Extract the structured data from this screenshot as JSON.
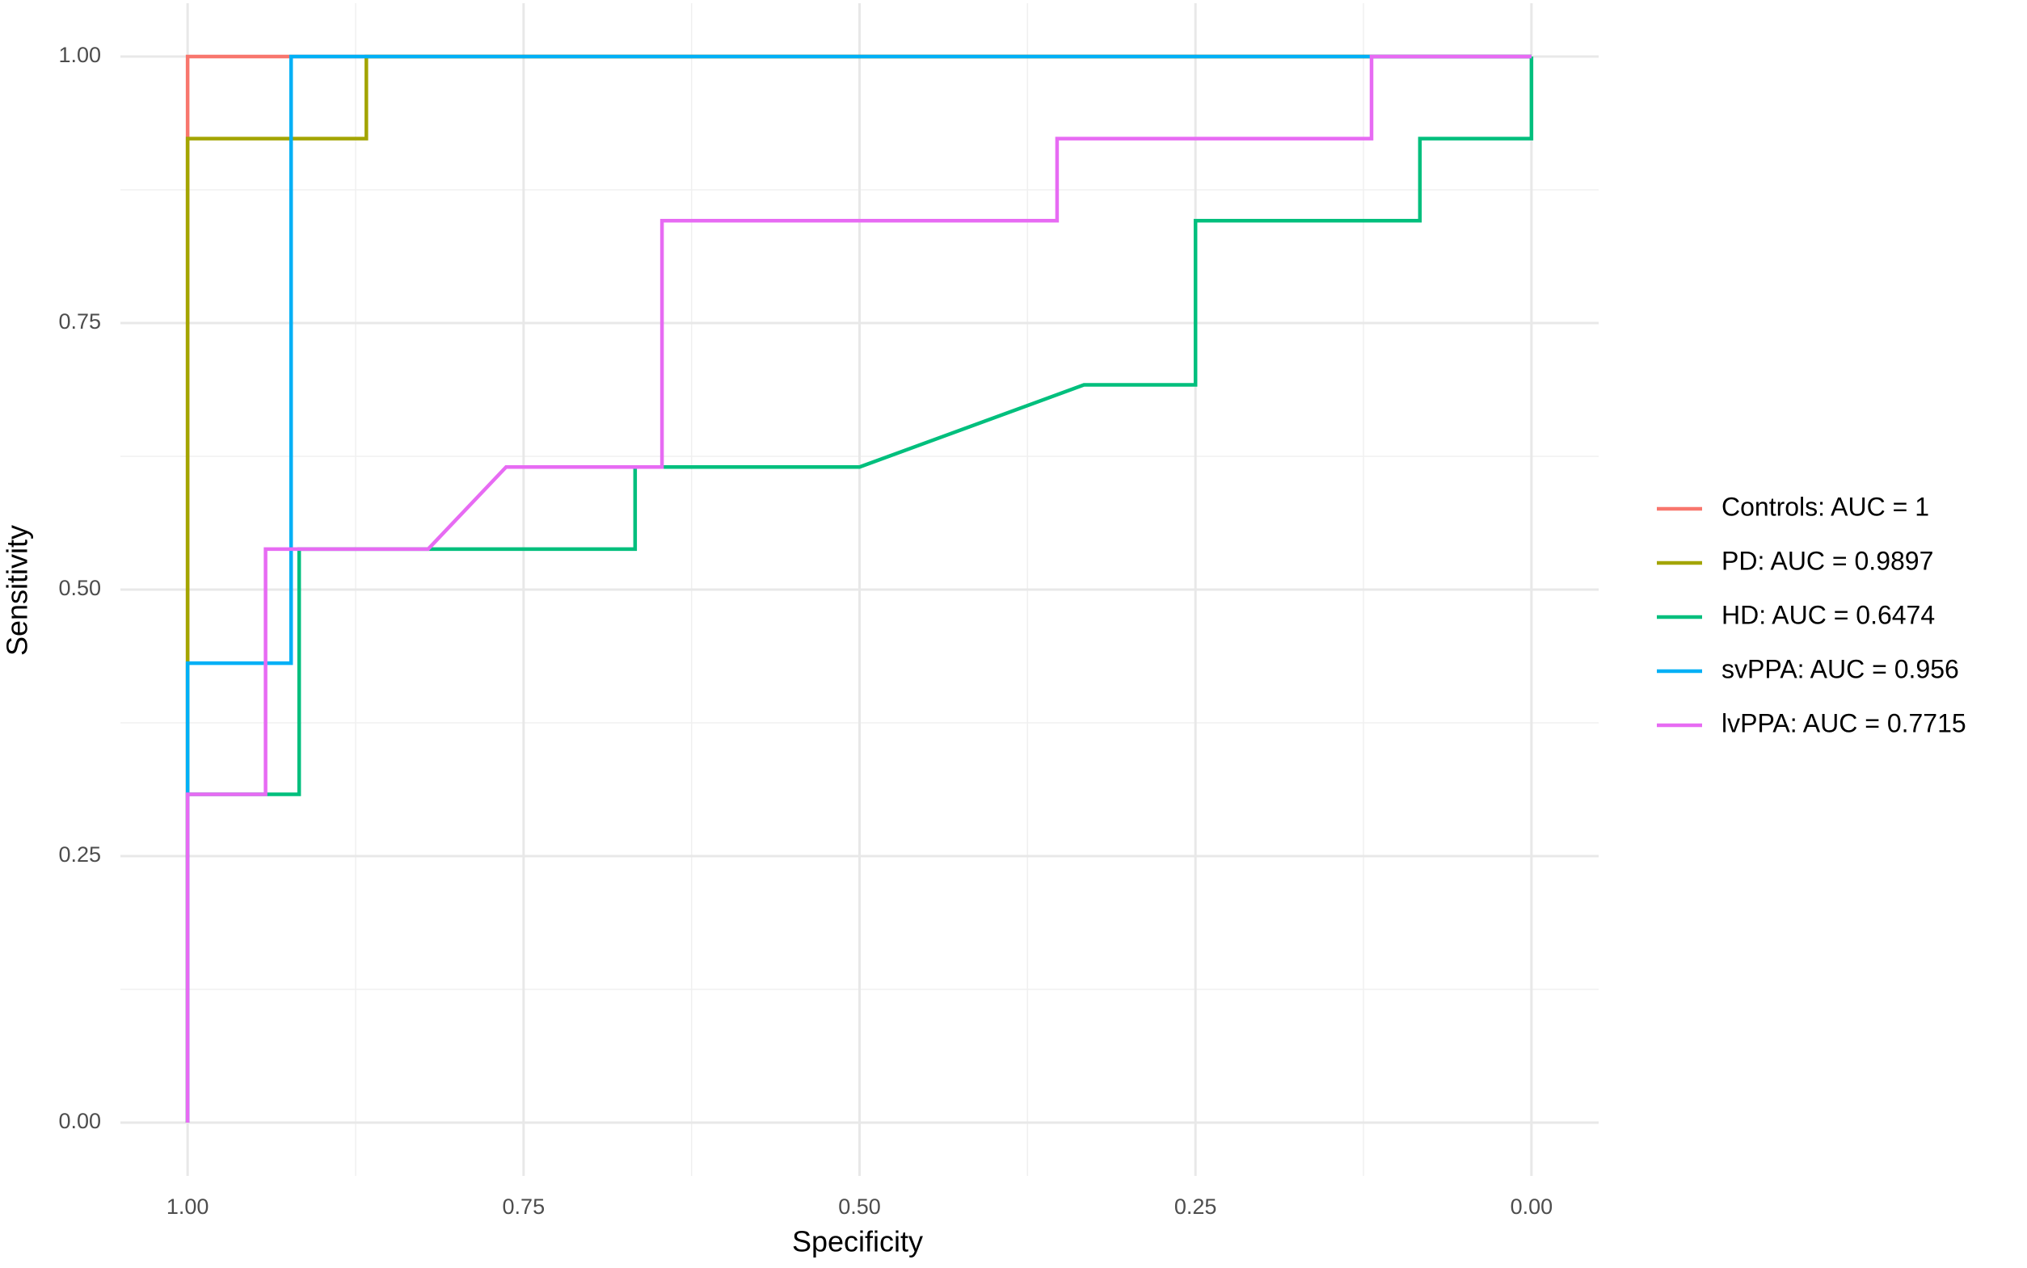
{
  "chart_data": {
    "type": "line",
    "x_label": "Specificity",
    "y_label": "Sensitivity",
    "xlim": [
      1.05,
      -0.05
    ],
    "ylim": [
      -0.05,
      1.05
    ],
    "xticks": [
      {
        "value": 1,
        "label": "1.00"
      },
      {
        "value": 0.75,
        "label": "0.75"
      },
      {
        "value": 0.5,
        "label": "0.50"
      },
      {
        "value": 0.25,
        "label": "0.25"
      },
      {
        "value": 0,
        "label": "0.00"
      }
    ],
    "yticks": [
      {
        "value": 0,
        "label": "0.00"
      },
      {
        "value": 0.25,
        "label": "0.25"
      },
      {
        "value": 0.5,
        "label": "0.50"
      },
      {
        "value": 0.75,
        "label": "0.75"
      },
      {
        "value": 1,
        "label": "1.00"
      }
    ],
    "x_minor_grid": [
      0.875,
      0.625,
      0.375,
      0.125
    ],
    "y_minor_grid": [
      0.125,
      0.375,
      0.625,
      0.875
    ],
    "grid": true,
    "legend": "right",
    "series": [
      {
        "name": "Controls: AUC = 1",
        "color": "#F8766D",
        "x": [
          1,
          1,
          0
        ],
        "values": [
          0,
          1,
          1
        ]
      },
      {
        "name": "PD: AUC = 0.9897",
        "color": "#A3A500",
        "x": [
          1,
          1,
          0.867,
          0.867,
          0
        ],
        "values": [
          0,
          0.923,
          0.923,
          1,
          1
        ]
      },
      {
        "name": "HD: AUC = 0.6474",
        "color": "#00BF7D",
        "x": [
          1,
          1,
          0.917,
          0.917,
          0.667,
          0.667,
          0.5,
          0.333,
          0.25,
          0.25,
          0.083,
          0.083,
          0,
          0
        ],
        "values": [
          0,
          0.308,
          0.308,
          0.538,
          0.538,
          0.615,
          0.615,
          0.692,
          0.692,
          0.846,
          0.846,
          0.923,
          0.923,
          1
        ]
      },
      {
        "name": "svPPA: AUC = 0.956",
        "color": "#00B0F6",
        "x": [
          1,
          1,
          0.923,
          0.923,
          0
        ],
        "values": [
          0,
          0.431,
          0.431,
          1,
          1
        ]
      },
      {
        "name": "lvPPA: AUC = 0.7715",
        "color": "#E76BF3",
        "x": [
          1,
          1,
          0.942,
          0.942,
          0.821,
          0.763,
          0.647,
          0.647,
          0.353,
          0.353,
          0.119,
          0.119,
          0
        ],
        "values": [
          0,
          0.308,
          0.308,
          0.538,
          0.538,
          0.615,
          0.615,
          0.846,
          0.846,
          0.923,
          0.923,
          1,
          1
        ]
      }
    ]
  }
}
